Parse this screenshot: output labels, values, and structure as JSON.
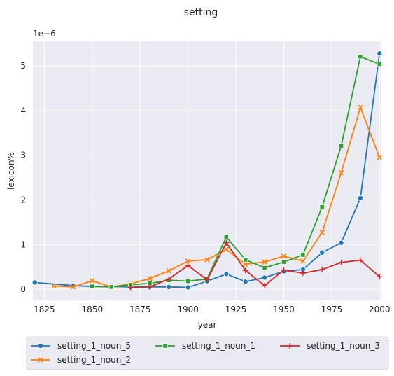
{
  "chart_data": {
    "type": "line",
    "title": "setting",
    "xlabel": "year",
    "ylabel": "lexicon%",
    "y_offset_label": "1e−6",
    "xlim": [
      1819,
      2001
    ],
    "ylim": [
      -0.25,
      5.55
    ],
    "xticks": [
      1825,
      1850,
      1875,
      1900,
      1925,
      1950,
      1975,
      2000
    ],
    "yticks": [
      0,
      1,
      2,
      3,
      4,
      5
    ],
    "grid": true,
    "legend_position": "bottom",
    "series": [
      {
        "name": "setting_1_noun_5",
        "color": "#1f77b4",
        "marker": "circle",
        "points": [
          [
            1820,
            0.15
          ],
          [
            1840,
            0.08
          ],
          [
            1850,
            0.06
          ],
          [
            1860,
            0.06
          ],
          [
            1870,
            0.05
          ],
          [
            1880,
            0.05
          ],
          [
            1890,
            0.05
          ],
          [
            1900,
            0.04
          ],
          [
            1910,
            0.18
          ],
          [
            1920,
            0.34
          ],
          [
            1930,
            0.17
          ],
          [
            1940,
            0.26
          ],
          [
            1950,
            0.4
          ],
          [
            1960,
            0.44
          ],
          [
            1970,
            0.82
          ],
          [
            1980,
            1.04
          ],
          [
            1990,
            2.04
          ],
          [
            2000,
            5.28
          ]
        ]
      },
      {
        "name": "setting_1_noun_2",
        "color": "#ff7f0e",
        "marker": "x",
        "points": [
          [
            1830,
            0.07
          ],
          [
            1840,
            0.05
          ],
          [
            1850,
            0.19
          ],
          [
            1860,
            0.05
          ],
          [
            1870,
            0.12
          ],
          [
            1880,
            0.24
          ],
          [
            1890,
            0.41
          ],
          [
            1900,
            0.63
          ],
          [
            1910,
            0.66
          ],
          [
            1920,
            0.89
          ],
          [
            1930,
            0.56
          ],
          [
            1940,
            0.61
          ],
          [
            1950,
            0.74
          ],
          [
            1960,
            0.63
          ],
          [
            1970,
            1.27
          ],
          [
            1980,
            2.61
          ],
          [
            1990,
            4.07
          ],
          [
            2000,
            2.95
          ]
        ]
      },
      {
        "name": "setting_1_noun_1",
        "color": "#2ca02c",
        "marker": "square",
        "points": [
          [
            1850,
            0.06
          ],
          [
            1860,
            0.05
          ],
          [
            1870,
            0.1
          ],
          [
            1880,
            0.13
          ],
          [
            1890,
            0.2
          ],
          [
            1900,
            0.18
          ],
          [
            1910,
            0.23
          ],
          [
            1920,
            1.17
          ],
          [
            1930,
            0.66
          ],
          [
            1940,
            0.48
          ],
          [
            1950,
            0.61
          ],
          [
            1960,
            0.77
          ],
          [
            1970,
            1.84
          ],
          [
            1980,
            3.21
          ],
          [
            1990,
            5.21
          ],
          [
            2000,
            5.04
          ]
        ]
      },
      {
        "name": "setting_1_noun_3",
        "color": "#d62728",
        "marker": "plus",
        "points": [
          [
            1870,
            0.04
          ],
          [
            1880,
            0.05
          ],
          [
            1890,
            0.23
          ],
          [
            1900,
            0.53
          ],
          [
            1910,
            0.21
          ],
          [
            1920,
            1.04
          ],
          [
            1930,
            0.42
          ],
          [
            1940,
            0.08
          ],
          [
            1950,
            0.43
          ],
          [
            1960,
            0.36
          ],
          [
            1970,
            0.44
          ],
          [
            1980,
            0.6
          ],
          [
            1990,
            0.65
          ],
          [
            2000,
            0.28
          ]
        ]
      }
    ]
  }
}
